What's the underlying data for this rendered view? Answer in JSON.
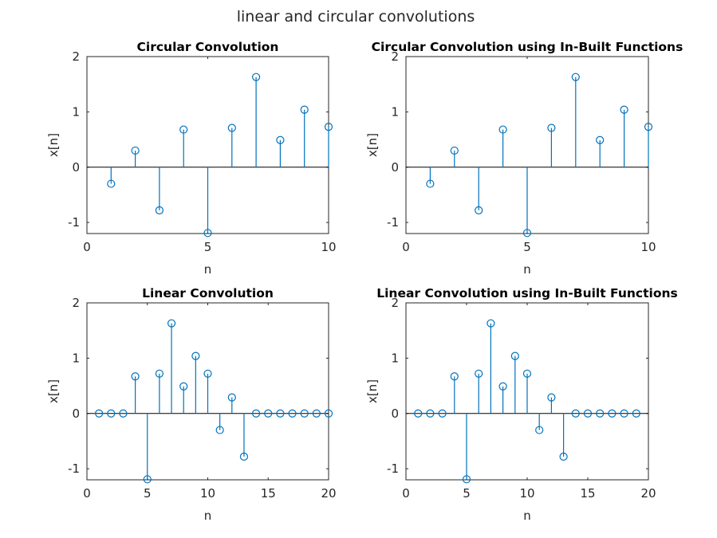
{
  "figure": {
    "suptitle": "linear and circular convolutions",
    "stem_color": "#0072BD"
  },
  "chart_data": [
    {
      "type": "stem",
      "title": "Circular Convolution",
      "xlabel": "n",
      "ylabel": "x[n]",
      "xlim": [
        0,
        10
      ],
      "ylim": [
        -1.2,
        2
      ],
      "xticks": [
        0,
        5,
        10
      ],
      "yticks": [
        -1,
        0,
        1,
        2
      ],
      "x": [
        1,
        2,
        3,
        4,
        5,
        6,
        7,
        8,
        9,
        10
      ],
      "y": [
        -0.3,
        0.3,
        -0.78,
        0.68,
        -1.19,
        0.71,
        1.63,
        0.49,
        1.04,
        0.73
      ]
    },
    {
      "type": "stem",
      "title": "Circular Convolution using In-Built Functions",
      "xlabel": "n",
      "ylabel": "x[n]",
      "xlim": [
        0,
        10
      ],
      "ylim": [
        -1.2,
        2
      ],
      "xticks": [
        0,
        5,
        10
      ],
      "yticks": [
        -1,
        0,
        1,
        2
      ],
      "x": [
        1,
        2,
        3,
        4,
        5,
        6,
        7,
        8,
        9,
        10
      ],
      "y": [
        -0.3,
        0.3,
        -0.78,
        0.68,
        -1.19,
        0.71,
        1.63,
        0.49,
        1.04,
        0.73
      ]
    },
    {
      "type": "stem",
      "title": "Linear Convolution",
      "xlabel": "n",
      "ylabel": "x[n]",
      "xlim": [
        0,
        20
      ],
      "ylim": [
        -1.2,
        2
      ],
      "xticks": [
        0,
        5,
        10,
        15,
        20
      ],
      "yticks": [
        -1,
        0,
        1,
        2
      ],
      "x": [
        1,
        2,
        3,
        4,
        5,
        6,
        7,
        8,
        9,
        10,
        11,
        12,
        13,
        14,
        15,
        16,
        17,
        18,
        19,
        20
      ],
      "y": [
        0,
        0,
        0,
        0.67,
        -1.19,
        0.72,
        1.63,
        0.49,
        1.04,
        0.72,
        -0.3,
        0.29,
        -0.78,
        0,
        0,
        0,
        0,
        0,
        0,
        0
      ]
    },
    {
      "type": "stem",
      "title": "Linear Convolution using In-Built Functions",
      "xlabel": "n",
      "ylabel": "x[n]",
      "xlim": [
        0,
        20
      ],
      "ylim": [
        -1.2,
        2
      ],
      "xticks": [
        0,
        5,
        10,
        15,
        20
      ],
      "yticks": [
        -1,
        0,
        1,
        2
      ],
      "x": [
        1,
        2,
        3,
        4,
        5,
        6,
        7,
        8,
        9,
        10,
        11,
        12,
        13,
        14,
        15,
        16,
        17,
        18,
        19
      ],
      "y": [
        0,
        0,
        0,
        0.67,
        -1.19,
        0.72,
        1.63,
        0.49,
        1.04,
        0.72,
        -0.3,
        0.29,
        -0.78,
        0,
        0,
        0,
        0,
        0,
        0
      ]
    }
  ]
}
